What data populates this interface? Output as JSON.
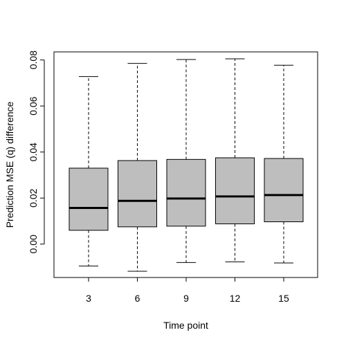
{
  "chart_data": {
    "type": "boxplot",
    "xlabel": "Time point",
    "ylabel": "Prediction MSE (q) difference",
    "ylim": [
      -0.0145,
      0.0835
    ],
    "y_ticks": [
      0.0,
      0.02,
      0.04,
      0.06,
      0.08
    ],
    "y_tick_labels": [
      "0.00",
      "0.02",
      "0.04",
      "0.06",
      "0.08"
    ],
    "categories": [
      "3",
      "6",
      "9",
      "12",
      "15"
    ],
    "boxes": [
      {
        "category": "3",
        "whisker_low": -0.0095,
        "q1": 0.006,
        "median": 0.0157,
        "q3": 0.033,
        "whisker_high": 0.0728
      },
      {
        "category": "6",
        "whisker_low": -0.0118,
        "q1": 0.0075,
        "median": 0.0188,
        "q3": 0.0363,
        "whisker_high": 0.0785
      },
      {
        "category": "9",
        "whisker_low": -0.008,
        "q1": 0.0078,
        "median": 0.0198,
        "q3": 0.0368,
        "whisker_high": 0.0802
      },
      {
        "category": "12",
        "whisker_low": -0.0077,
        "q1": 0.0088,
        "median": 0.0207,
        "q3": 0.0375,
        "whisker_high": 0.0805
      },
      {
        "category": "15",
        "whisker_low": -0.0082,
        "q1": 0.0097,
        "median": 0.0213,
        "q3": 0.0372,
        "whisker_high": 0.0777
      }
    ],
    "colors": {
      "box_fill": "#bebebe",
      "stroke": "#000000"
    },
    "grid": false,
    "legend": "none"
  }
}
